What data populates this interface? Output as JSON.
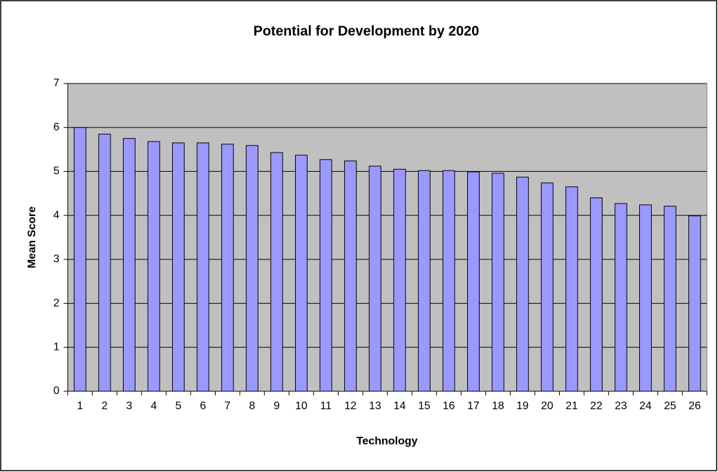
{
  "chart_data": {
    "type": "bar",
    "title": "Potential for Development by 2020",
    "x_label": "Technology",
    "y_label": "Mean Score",
    "categories": [
      "1",
      "2",
      "3",
      "4",
      "5",
      "6",
      "7",
      "8",
      "9",
      "10",
      "11",
      "12",
      "13",
      "14",
      "15",
      "16",
      "17",
      "18",
      "19",
      "20",
      "21",
      "22",
      "23",
      "24",
      "25",
      "26"
    ],
    "values": [
      6.0,
      5.85,
      5.75,
      5.68,
      5.65,
      5.65,
      5.62,
      5.59,
      5.43,
      5.37,
      5.27,
      5.24,
      5.12,
      5.05,
      5.02,
      5.02,
      4.99,
      4.96,
      4.87,
      4.74,
      4.65,
      4.4,
      4.27,
      4.24,
      4.21,
      3.99
    ],
    "color": "#9999ff",
    "ylim": [
      0,
      7
    ],
    "yticks": [
      0,
      1,
      2,
      3,
      4,
      5,
      6,
      7
    ],
    "grid": true
  }
}
